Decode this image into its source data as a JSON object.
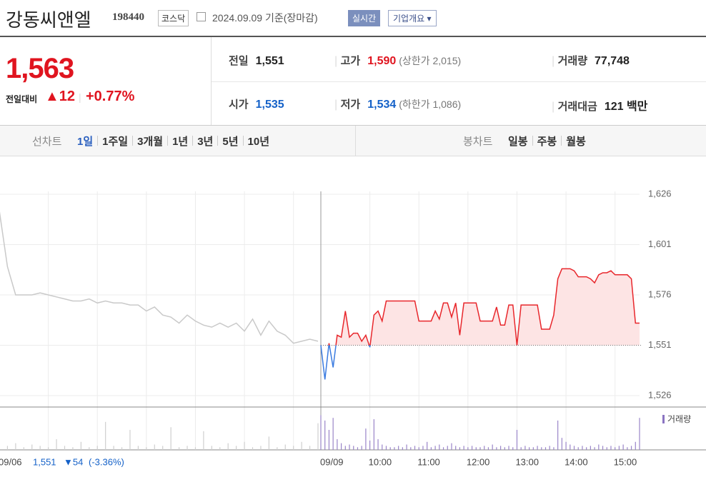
{
  "header": {
    "name": "강동씨앤엘",
    "code": "198440",
    "market": "코스닥",
    "date": "2024.09.09 기준(장마감)",
    "realtime": "실시간",
    "overview": "기업개요"
  },
  "quote": {
    "price": "1,563",
    "change_label": "전일대비",
    "change": "▲12",
    "rate": "+0.77%",
    "items": [
      {
        "label": "전일",
        "value": "1,551"
      },
      {
        "label": "고가",
        "value": "1,590",
        "note": "(상한가 2,015)"
      },
      {
        "label": "거래량",
        "value": "77,748"
      },
      {
        "label": "시가",
        "value": "1,535"
      },
      {
        "label": "저가",
        "value": "1,534",
        "note": "(하한가 1,086)"
      },
      {
        "label": "거래대금",
        "value": "121 백만"
      }
    ]
  },
  "tabs": {
    "line_chart": {
      "label": "선차트",
      "options": [
        "1일",
        "1주일",
        "3개월",
        "1년",
        "3년",
        "5년",
        "10년"
      ]
    },
    "candle_chart": {
      "label": "봉차트",
      "options": [
        "일봉",
        "주봉",
        "월봉"
      ]
    }
  },
  "chart": {
    "ylim": [
      1526,
      1626
    ],
    "yticks": [
      {
        "value": 1626,
        "label": "1,626"
      },
      {
        "value": 1601,
        "label": "1,601"
      },
      {
        "value": 1576,
        "label": "1,576"
      },
      {
        "value": 1551,
        "label": "1,551"
      },
      {
        "value": 1526,
        "label": "1,526"
      }
    ],
    "base": 1551,
    "xlim": [
      0,
      390
    ],
    "xticks": [
      {
        "value": 60,
        "label": "10:00"
      },
      {
        "value": 120,
        "label": "11:00"
      },
      {
        "value": 180,
        "label": "12:00"
      },
      {
        "value": 240,
        "label": "13:00"
      },
      {
        "value": 300,
        "label": "14:00"
      },
      {
        "value": 360,
        "label": "15:00"
      }
    ],
    "vlim": [
      0,
      3000
    ],
    "volume_label": "거래량",
    "prev": {
      "date": "09/06",
      "close": "1,551",
      "change": "▼54",
      "rate": "(-3.36%)",
      "values": [
        1618,
        1590,
        1576,
        1576,
        1576,
        1577,
        1576,
        1575,
        1574,
        1573,
        1573,
        1574,
        1572,
        1573,
        1572,
        1572,
        1571,
        1571,
        1568,
        1570,
        1566,
        1565,
        1562,
        1566,
        1563,
        1561,
        1560,
        1562,
        1560,
        1562,
        1558,
        1564,
        1556,
        1563,
        1558,
        1556,
        1552,
        1553,
        1554,
        1553
      ],
      "volume": [
        1200,
        300,
        500,
        200,
        400,
        300,
        200,
        800,
        300,
        200,
        600,
        200,
        300,
        2100,
        300,
        200,
        1500,
        300,
        200,
        400,
        300,
        1700,
        200,
        300,
        200,
        1400,
        300,
        200,
        500,
        300,
        600,
        200,
        300,
        1000,
        200,
        400,
        300,
        600,
        300,
        2000
      ]
    },
    "today": {
      "date": "09/09",
      "values": [
        1551,
        1534,
        1552,
        1540,
        1556,
        1555,
        1568,
        1555,
        1557,
        1557,
        1553,
        1556,
        1550,
        1566,
        1568,
        1563,
        1573,
        1573,
        1573,
        1573,
        1573,
        1573,
        1573,
        1573,
        1563,
        1563,
        1563,
        1563,
        1568,
        1564,
        1572,
        1572,
        1565,
        1572,
        1556,
        1572,
        1572,
        1572,
        1572,
        1563,
        1563,
        1563,
        1563,
        1570,
        1561,
        1561,
        1571,
        1571,
        1551,
        1571,
        1571,
        1571,
        1571,
        1571,
        1559,
        1559,
        1559,
        1566,
        1584,
        1589,
        1589,
        1589,
        1588,
        1585,
        1585,
        1585,
        1584,
        1582,
        1586,
        1587,
        1587,
        1588,
        1586,
        1586,
        1586,
        1586,
        1584,
        1562,
        1562
      ],
      "volume": [
        2600,
        2200,
        1500,
        2400,
        800,
        500,
        300,
        400,
        300,
        200,
        300,
        1600,
        700,
        2300,
        800,
        400,
        300,
        200,
        200,
        300,
        200,
        400,
        200,
        300,
        200,
        300,
        600,
        200,
        300,
        400,
        200,
        300,
        500,
        300,
        200,
        300,
        200,
        300,
        200,
        200,
        300,
        200,
        400,
        200,
        300,
        200,
        300,
        200,
        1500,
        200,
        300,
        200,
        200,
        300,
        200,
        200,
        300,
        200,
        2200,
        900,
        600,
        400,
        300,
        200,
        300,
        200,
        300,
        200,
        400,
        300,
        200,
        300,
        200,
        300,
        400,
        200,
        300,
        600,
        2400
      ]
    }
  }
}
